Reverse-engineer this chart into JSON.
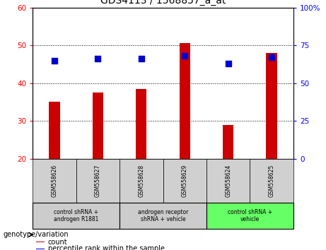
{
  "title": "GDS4113 / 1568857_a_at",
  "samples": [
    "GSM558626",
    "GSM558627",
    "GSM558628",
    "GSM558629",
    "GSM558624",
    "GSM558625"
  ],
  "counts": [
    35,
    37.5,
    38.5,
    50.5,
    29,
    48
  ],
  "percentile_ranks_right": [
    65,
    66,
    66,
    68,
    63,
    67
  ],
  "ylim_left": [
    20,
    60
  ],
  "ylim_right": [
    0,
    100
  ],
  "yticks_left": [
    20,
    30,
    40,
    50,
    60
  ],
  "yticks_right": [
    0,
    25,
    50,
    75,
    100
  ],
  "bar_color": "#cc0000",
  "dot_color": "#0000cc",
  "groups": [
    {
      "label": "control shRNA +\nandrogen R1881",
      "indices": [
        0,
        1
      ],
      "color": "#cccccc"
    },
    {
      "label": "androgen receptor\nshRNA + vehicle",
      "indices": [
        2,
        3
      ],
      "color": "#cccccc"
    },
    {
      "label": "control shRNA +\nvehicle",
      "indices": [
        4,
        5
      ],
      "color": "#66ff66"
    }
  ],
  "genotype_label": "genotype/variation",
  "legend_count": "count",
  "legend_percentile": "percentile rank within the sample",
  "bar_width": 0.25,
  "dot_size": 28,
  "fig_width": 4.61,
  "fig_height": 3.54
}
